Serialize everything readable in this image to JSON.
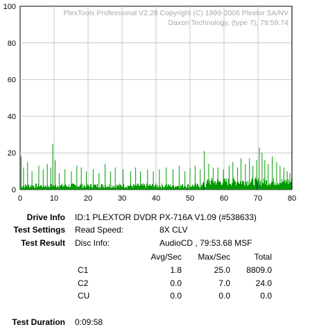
{
  "watermark": {
    "line1": "PlexTools Professional V2.28 Copyright (C) 1999-2005 Plextor SA/NV",
    "line2": "Daxon Technology, (type 7), 79:59.74"
  },
  "chart_data": {
    "type": "bar",
    "title": "",
    "xlabel": "",
    "ylabel": "",
    "xlim": [
      0,
      80
    ],
    "ylim": [
      0,
      100
    ],
    "x_ticks": [
      "0",
      "10",
      "20",
      "30",
      "40",
      "50",
      "60",
      "70",
      "80"
    ],
    "y_ticks": [
      "0",
      "20",
      "40",
      "60",
      "80",
      "100"
    ],
    "grid": true,
    "series": [
      {
        "color": "#009900",
        "peaks": [
          {
            "x": 0.3,
            "y": 18
          },
          {
            "x": 1.0,
            "y": 12
          },
          {
            "x": 2.2,
            "y": 15
          },
          {
            "x": 3.5,
            "y": 10
          },
          {
            "x": 5.5,
            "y": 13
          },
          {
            "x": 6.8,
            "y": 11
          },
          {
            "x": 8.0,
            "y": 14
          },
          {
            "x": 9.0,
            "y": 12
          },
          {
            "x": 9.6,
            "y": 25
          },
          {
            "x": 10.3,
            "y": 16
          },
          {
            "x": 11.5,
            "y": 9
          },
          {
            "x": 13.2,
            "y": 11
          },
          {
            "x": 15.1,
            "y": 10
          },
          {
            "x": 16.7,
            "y": 13
          },
          {
            "x": 18.0,
            "y": 12
          },
          {
            "x": 19.5,
            "y": 10
          },
          {
            "x": 21.5,
            "y": 11
          },
          {
            "x": 23.2,
            "y": 9
          },
          {
            "x": 25.0,
            "y": 14
          },
          {
            "x": 26.6,
            "y": 10
          },
          {
            "x": 28.0,
            "y": 12
          },
          {
            "x": 30.3,
            "y": 11
          },
          {
            "x": 32.5,
            "y": 10
          },
          {
            "x": 34.0,
            "y": 12
          },
          {
            "x": 35.4,
            "y": 10
          },
          {
            "x": 37.5,
            "y": 11
          },
          {
            "x": 39.2,
            "y": 10
          },
          {
            "x": 41.0,
            "y": 11
          },
          {
            "x": 43.0,
            "y": 12
          },
          {
            "x": 45.0,
            "y": 11
          },
          {
            "x": 46.8,
            "y": 13
          },
          {
            "x": 48.5,
            "y": 10
          },
          {
            "x": 50.0,
            "y": 12
          },
          {
            "x": 51.5,
            "y": 13
          },
          {
            "x": 53.0,
            "y": 11
          },
          {
            "x": 54.2,
            "y": 21
          },
          {
            "x": 55.5,
            "y": 14
          },
          {
            "x": 56.8,
            "y": 12
          },
          {
            "x": 58.2,
            "y": 12
          },
          {
            "x": 59.8,
            "y": 11
          },
          {
            "x": 61.5,
            "y": 13
          },
          {
            "x": 62.6,
            "y": 15
          },
          {
            "x": 64.0,
            "y": 12
          },
          {
            "x": 65.0,
            "y": 17
          },
          {
            "x": 66.3,
            "y": 14
          },
          {
            "x": 67.5,
            "y": 17
          },
          {
            "x": 68.5,
            "y": 13
          },
          {
            "x": 69.6,
            "y": 16
          },
          {
            "x": 70.4,
            "y": 23
          },
          {
            "x": 71.2,
            "y": 20
          },
          {
            "x": 72.0,
            "y": 16
          },
          {
            "x": 73.0,
            "y": 14
          },
          {
            "x": 74.2,
            "y": 18
          },
          {
            "x": 75.5,
            "y": 15
          },
          {
            "x": 76.5,
            "y": 13
          },
          {
            "x": 77.6,
            "y": 12
          },
          {
            "x": 78.6,
            "y": 10
          },
          {
            "x": 79.4,
            "y": 9
          }
        ]
      }
    ],
    "blue_marker_x": [
      54.0,
      69.8
    ],
    "end_marker_x": 79.98
  },
  "info": {
    "drive_info_label": "Drive Info",
    "drive_info_value": "ID:1 PLEXTOR DVDR PX-716A V1.09 (#538633)",
    "test_settings_label": "Test Settings",
    "read_speed_label": "Read Speed:",
    "read_speed_value": "8X CLV",
    "test_result_label": "Test Result",
    "disc_info_label": "Disc Info:",
    "disc_info_value": "AudioCD , 79:53.68 MSF",
    "test_duration_label": "Test Duration",
    "test_duration_value": "0:09:58"
  },
  "results": {
    "headers": [
      "Avg/Sec",
      "Max/Sec",
      "Total"
    ],
    "rows": [
      {
        "name": "C1",
        "avg": "1.8",
        "max": "25.0",
        "total": "8809.0"
      },
      {
        "name": "C2",
        "avg": "0.0",
        "max": "7.0",
        "total": "24.0"
      },
      {
        "name": "CU",
        "avg": "0.0",
        "max": "0.0",
        "total": "0.0"
      }
    ]
  }
}
